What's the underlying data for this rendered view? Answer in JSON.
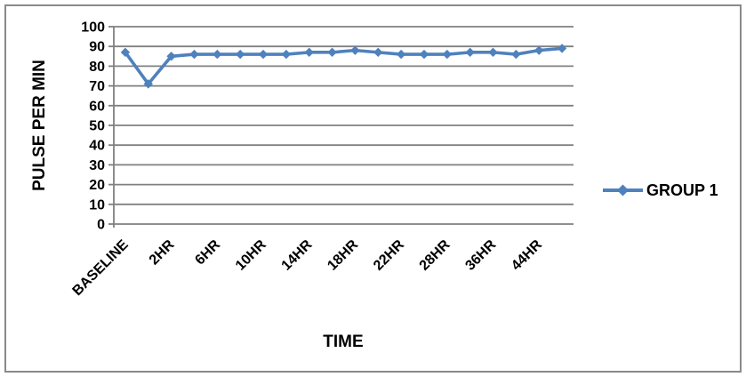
{
  "frame": {
    "background": "#ffffff",
    "border_color": "#8a8a8a"
  },
  "chart_data": {
    "type": "line",
    "title": "",
    "xlabel": "TIME",
    "ylabel": "PULSE PER MIN",
    "x_tick_labels": [
      "BASELINE",
      "2HR",
      "6HR",
      "10HR",
      "14HR",
      "18HR",
      "22HR",
      "28HR",
      "36HR",
      "44HR"
    ],
    "points_per_tick_label": 2,
    "series": [
      {
        "name": "GROUP 1",
        "color": "#4F81BD",
        "marker": "diamond",
        "values": [
          87,
          71,
          85,
          86,
          86,
          86,
          86,
          86,
          87,
          87,
          88,
          87,
          86,
          86,
          86,
          87,
          87,
          86,
          88,
          89
        ]
      }
    ],
    "ylim": [
      0,
      100
    ],
    "y_tick_step": 10,
    "y_tick_labels": [
      "100",
      "90",
      "80",
      "70",
      "60",
      "50",
      "40",
      "30",
      "20",
      "10",
      "0"
    ],
    "grid": true,
    "gridline_color": "#808080",
    "legend": {
      "position": "right",
      "entries": [
        "GROUP 1"
      ]
    }
  }
}
